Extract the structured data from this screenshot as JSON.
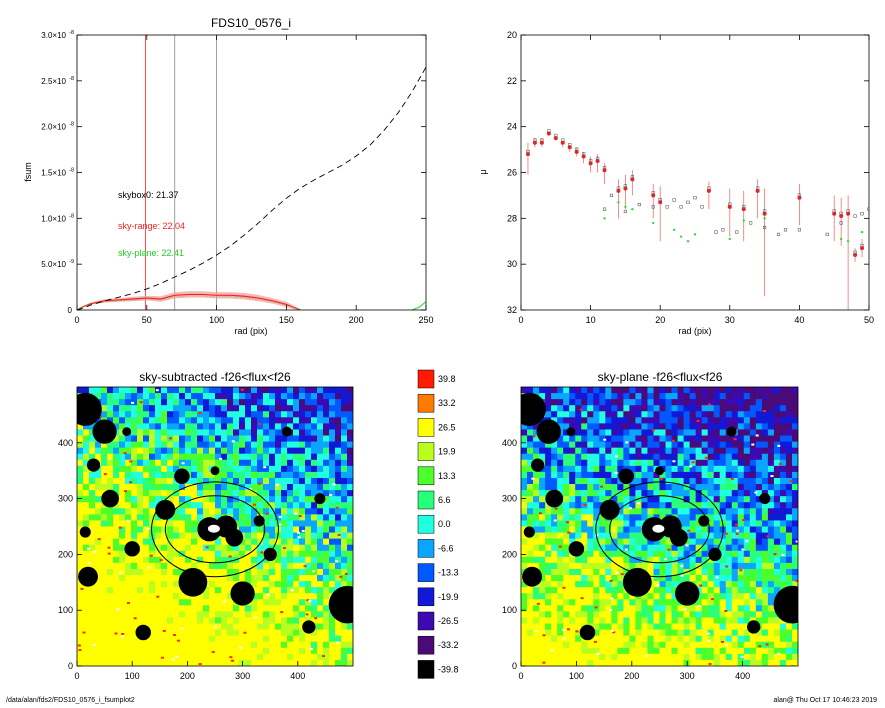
{
  "footer": {
    "left": "/data/alan/fds2/FDS10_0576_i_fsumplot2",
    "right": "alan@  Thu Oct 17 10:46:23 2019"
  },
  "colors": {
    "sky_range": "#ff2020",
    "sky_plane": "#22dd22",
    "band": "#f4a0a0",
    "grey_line": "#888888"
  },
  "chart_data": [
    {
      "type": "line",
      "title": "FDS10_0576_i",
      "xlabel": "rad (pix)",
      "ylabel": "fsum",
      "xlim": [
        0,
        250
      ],
      "ylim": [
        0,
        3e-08
      ],
      "xticks": [
        "0",
        "50",
        "100",
        "150",
        "200",
        "250"
      ],
      "yticks": [
        {
          "base": "0",
          "exp": ""
        },
        {
          "base": "5.0×10",
          "exp": "-9"
        },
        {
          "base": "1.0×10",
          "exp": "-8"
        },
        {
          "base": "1.5×10",
          "exp": "-8"
        },
        {
          "base": "2.0×10",
          "exp": "-8"
        },
        {
          "base": "2.5×10",
          "exp": "-8"
        },
        {
          "base": "3.0×10",
          "exp": "-8"
        }
      ],
      "vlines": [
        {
          "x": 49,
          "color": "red"
        },
        {
          "x": 70,
          "color": "grey"
        },
        {
          "x": 100,
          "color": "grey"
        }
      ],
      "annotations": [
        {
          "text": "skybox0: 21.37",
          "color": "black"
        },
        {
          "text": "sky-range: 22.04",
          "color": "red"
        },
        {
          "text": "sky-plane: 22.41",
          "color": "green"
        }
      ],
      "series": [
        {
          "style": "dashed-black",
          "x": [
            0,
            5,
            10,
            20,
            30,
            40,
            50,
            60,
            70,
            80,
            90,
            100,
            110,
            120,
            130,
            140,
            150,
            160,
            170,
            180,
            190,
            200,
            210,
            220,
            230,
            240,
            250
          ],
          "y": [
            0,
            2.5e-10,
            5.5e-10,
            1e-09,
            1.4e-09,
            1.8e-09,
            2.3e-09,
            2.9e-09,
            3.6e-09,
            4.3e-09,
            5.1e-09,
            6e-09,
            7e-09,
            8.2e-09,
            9.5e-09,
            1.09e-08,
            1.22e-08,
            1.33e-08,
            1.42e-08,
            1.5e-08,
            1.58e-08,
            1.68e-08,
            1.8e-08,
            1.96e-08,
            2.15e-08,
            2.38e-08,
            2.65e-08
          ]
        },
        {
          "style": "red-with-band",
          "x": [
            0,
            5,
            10,
            20,
            30,
            40,
            50,
            60,
            70,
            80,
            90,
            100,
            110,
            120,
            130,
            140,
            150,
            155,
            160
          ],
          "y": [
            0,
            4e-10,
            7e-10,
            1e-09,
            1.1e-09,
            1.2e-09,
            1.3e-09,
            1.2e-09,
            1.6e-09,
            1.7e-09,
            1.7e-09,
            1.6e-09,
            1.6e-09,
            1.5e-09,
            1.3e-09,
            1e-09,
            6e-10,
            3e-10,
            0.0
          ],
          "err": [
            0,
            5e-11,
            1e-10,
            2e-10,
            2e-10,
            2.5e-10,
            2.5e-10,
            3e-10,
            3.5e-10,
            3.5e-10,
            3.5e-10,
            3.5e-10,
            3.5e-10,
            3.5e-10,
            3.5e-10,
            3e-10,
            3e-10,
            2e-10,
            1e-10
          ]
        },
        {
          "style": "green-tail",
          "x": [
            240,
            245,
            250
          ],
          "y": [
            0,
            3e-10,
            9e-10
          ]
        }
      ]
    },
    {
      "type": "scatter",
      "title": "",
      "xlabel": "rad (pix)",
      "ylabel": "μ",
      "xlim": [
        0,
        50
      ],
      "ylim": [
        32,
        20
      ],
      "xticks": [
        "0",
        "10",
        "20",
        "30",
        "40",
        "50"
      ],
      "yticks": [
        "20",
        "22",
        "24",
        "26",
        "28",
        "30",
        "32"
      ],
      "points": [
        {
          "x": 1,
          "y": 25.2,
          "lo": 24.7,
          "hi": 26.1
        },
        {
          "x": 2,
          "y": 24.7,
          "lo": 24.5,
          "hi": 24.9
        },
        {
          "x": 3,
          "y": 24.7,
          "lo": 24.5,
          "hi": 24.9
        },
        {
          "x": 4,
          "y": 24.3,
          "lo": 24.2,
          "hi": 24.4
        },
        {
          "x": 5,
          "y": 24.5,
          "lo": 24.4,
          "hi": 24.6
        },
        {
          "x": 6,
          "y": 24.7,
          "lo": 24.6,
          "hi": 24.9
        },
        {
          "x": 7,
          "y": 24.9,
          "lo": 24.8,
          "hi": 25.1
        },
        {
          "x": 8,
          "y": 25.1,
          "lo": 24.9,
          "hi": 25.3
        },
        {
          "x": 9,
          "y": 25.3,
          "lo": 25.1,
          "hi": 25.6
        },
        {
          "x": 10,
          "y": 25.6,
          "lo": 25.3,
          "hi": 26.0
        },
        {
          "x": 11,
          "y": 25.5,
          "lo": 25.2,
          "hi": 26.0
        },
        {
          "x": 12,
          "y": 25.9,
          "lo": 25.6,
          "hi": 26.5
        },
        {
          "x": 14,
          "y": 26.8,
          "lo": 26.3,
          "hi": 28.0
        },
        {
          "x": 15,
          "y": 26.7,
          "lo": 26.1,
          "hi": 27.6
        },
        {
          "x": 16,
          "y": 26.3,
          "lo": 25.9,
          "hi": 27.0
        },
        {
          "x": 19,
          "y": 27.0,
          "lo": 26.5,
          "hi": 28.0
        },
        {
          "x": 20,
          "y": 27.3,
          "lo": 26.6,
          "hi": 29.0
        },
        {
          "x": 27,
          "y": 26.8,
          "lo": 26.4,
          "hi": 27.6
        },
        {
          "x": 30,
          "y": 27.5,
          "lo": 26.7,
          "hi": 28.8
        },
        {
          "x": 32,
          "y": 27.6,
          "lo": 26.8,
          "hi": 29.0
        },
        {
          "x": 34,
          "y": 26.8,
          "lo": 26.3,
          "hi": 28.0
        },
        {
          "x": 35,
          "y": 27.8,
          "lo": 26.7,
          "hi": 31.4
        },
        {
          "x": 40,
          "y": 27.1,
          "lo": 26.5,
          "hi": 28.3
        },
        {
          "x": 45,
          "y": 27.8,
          "lo": 27.0,
          "hi": 29.0
        },
        {
          "x": 46,
          "y": 27.9,
          "lo": 27.1,
          "hi": 29.2
        },
        {
          "x": 47,
          "y": 27.8,
          "lo": 27.0,
          "hi": 32.0
        },
        {
          "x": 48,
          "y": 29.6,
          "lo": 29.3,
          "hi": 29.9
        },
        {
          "x": 49,
          "y": 29.3,
          "lo": 28.9,
          "hi": 29.7
        }
      ],
      "green_points": [
        [
          12,
          28.0
        ],
        [
          14,
          27.3
        ],
        [
          15,
          27.5
        ],
        [
          16,
          27.6
        ],
        [
          19,
          28.2
        ],
        [
          22,
          28.5
        ],
        [
          23,
          28.8
        ],
        [
          24,
          29.0
        ],
        [
          25,
          28.7
        ],
        [
          30,
          28.9
        ],
        [
          32,
          28.1
        ],
        [
          35,
          28.0
        ],
        [
          46,
          28.9
        ],
        [
          47,
          29.0
        ],
        [
          49,
          28.6
        ]
      ],
      "open_points": [
        [
          12,
          27.6
        ],
        [
          13,
          27.0
        ],
        [
          15,
          27.7
        ],
        [
          17,
          27.4
        ],
        [
          19,
          27.5
        ],
        [
          21,
          27.5
        ],
        [
          22,
          27.2
        ],
        [
          23,
          27.5
        ],
        [
          24,
          27.3
        ],
        [
          25,
          27.1
        ],
        [
          26,
          27.5
        ],
        [
          28,
          28.6
        ],
        [
          29,
          28.5
        ],
        [
          31,
          28.6
        ],
        [
          33,
          28.2
        ],
        [
          35,
          28.4
        ],
        [
          37,
          28.7
        ],
        [
          38,
          28.5
        ],
        [
          40,
          28.5
        ],
        [
          44,
          28.7
        ],
        [
          46,
          28.2
        ],
        [
          48,
          27.9
        ],
        [
          49,
          27.8
        ],
        [
          50,
          27.6
        ]
      ]
    },
    {
      "type": "heatmap",
      "title": "sky-subtracted -f26<flux<f26",
      "xlim": [
        0,
        500
      ],
      "ylim": [
        0,
        500
      ],
      "xticks": [
        "0",
        "100",
        "200",
        "300",
        "400"
      ],
      "yticks": [
        "0",
        "100",
        "200",
        "300",
        "400"
      ]
    },
    {
      "type": "heatmap",
      "title": "sky-plane -f26<flux<f26",
      "xlim": [
        0,
        500
      ],
      "ylim": [
        0,
        500
      ],
      "xticks": [
        "0",
        "100",
        "200",
        "300",
        "400"
      ],
      "yticks": [
        "0",
        "100",
        "200",
        "300",
        "400"
      ]
    }
  ],
  "colorbar": {
    "labels": [
      "39.8",
      "33.2",
      "26.5",
      "19.9",
      "13.3",
      "6.6",
      "0.0",
      "-6.6",
      "-13.3",
      "-19.9",
      "-26.5",
      "-33.2",
      "-39.8"
    ],
    "colors": [
      "#ff1a00",
      "#ff7a00",
      "#ffff00",
      "#b8ff20",
      "#4cff2a",
      "#28ff7a",
      "#20ffdf",
      "#0aa5ff",
      "#0059ff",
      "#1118d6",
      "#3c0ab0",
      "#4a0a78",
      "#000000"
    ]
  }
}
